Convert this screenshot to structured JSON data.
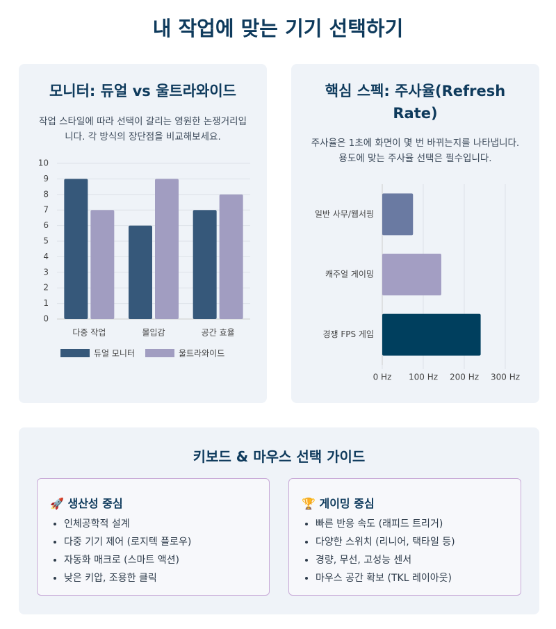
{
  "title": "내 작업에 맞는 기기 선택하기",
  "chart_data": [
    {
      "type": "bar",
      "title": "모니터: 듀얼 vs 울트라와이드",
      "subtitle": "작업 스타일에 따라 선택이 갈리는 영원한 논쟁거리입니다. 각 방식의 장단점을 비교해보세요.",
      "categories": [
        "다중 작업",
        "몰입감",
        "공간 효율"
      ],
      "series": [
        {
          "name": "듀얼 모니터",
          "color": "#36587a",
          "values": [
            9,
            6,
            7
          ]
        },
        {
          "name": "울트라와이드",
          "color": "#a19dc1",
          "values": [
            7,
            9,
            8
          ]
        }
      ],
      "ylim": [
        0,
        10
      ],
      "yticks": [
        0,
        1,
        2,
        3,
        4,
        5,
        6,
        7,
        8,
        9,
        10
      ],
      "grid": true,
      "legend": "bottom"
    },
    {
      "type": "barh",
      "title": "핵심 스펙: 주사율(Refresh Rate)",
      "subtitle": "주사율은 1초에 화면이 몇 번 바뀌는지를 나타냅니다. 용도에 맞는 주사율 선택은 필수입니다.",
      "categories": [
        "일반 사무/웹서핑",
        "캐주얼 게이밍",
        "경쟁 FPS 게임"
      ],
      "values": [
        75,
        144,
        240
      ],
      "colors": [
        "#6a7aa2",
        "#a39ec3",
        "#003f5e"
      ],
      "xlim": [
        0,
        300
      ],
      "xticks": [
        {
          "value": 0,
          "label": "0 Hz"
        },
        {
          "value": 100,
          "label": "100 Hz"
        },
        {
          "value": 200,
          "label": "200 Hz"
        },
        {
          "value": 300,
          "label": "300 Hz"
        }
      ],
      "grid": true
    }
  ],
  "guide": {
    "title": "키보드 & 마우스 선택 가이드",
    "boxes": [
      {
        "title": "🚀 생산성 중심",
        "items": [
          "인체공학적 설계",
          "다중 기기 제어 (로지텍 플로우)",
          "자동화 매크로 (스마트 액션)",
          "낮은 키압, 조용한 클릭"
        ]
      },
      {
        "title": "🏆 게이밍 중심",
        "items": [
          "빠른 반응 속도 (래피드 트리거)",
          "다양한 스위치 (리니어, 택타일 등)",
          "경량, 무선, 고성능 센서",
          "마우스 공간 확보 (TKL 레이아웃)"
        ]
      }
    ]
  }
}
